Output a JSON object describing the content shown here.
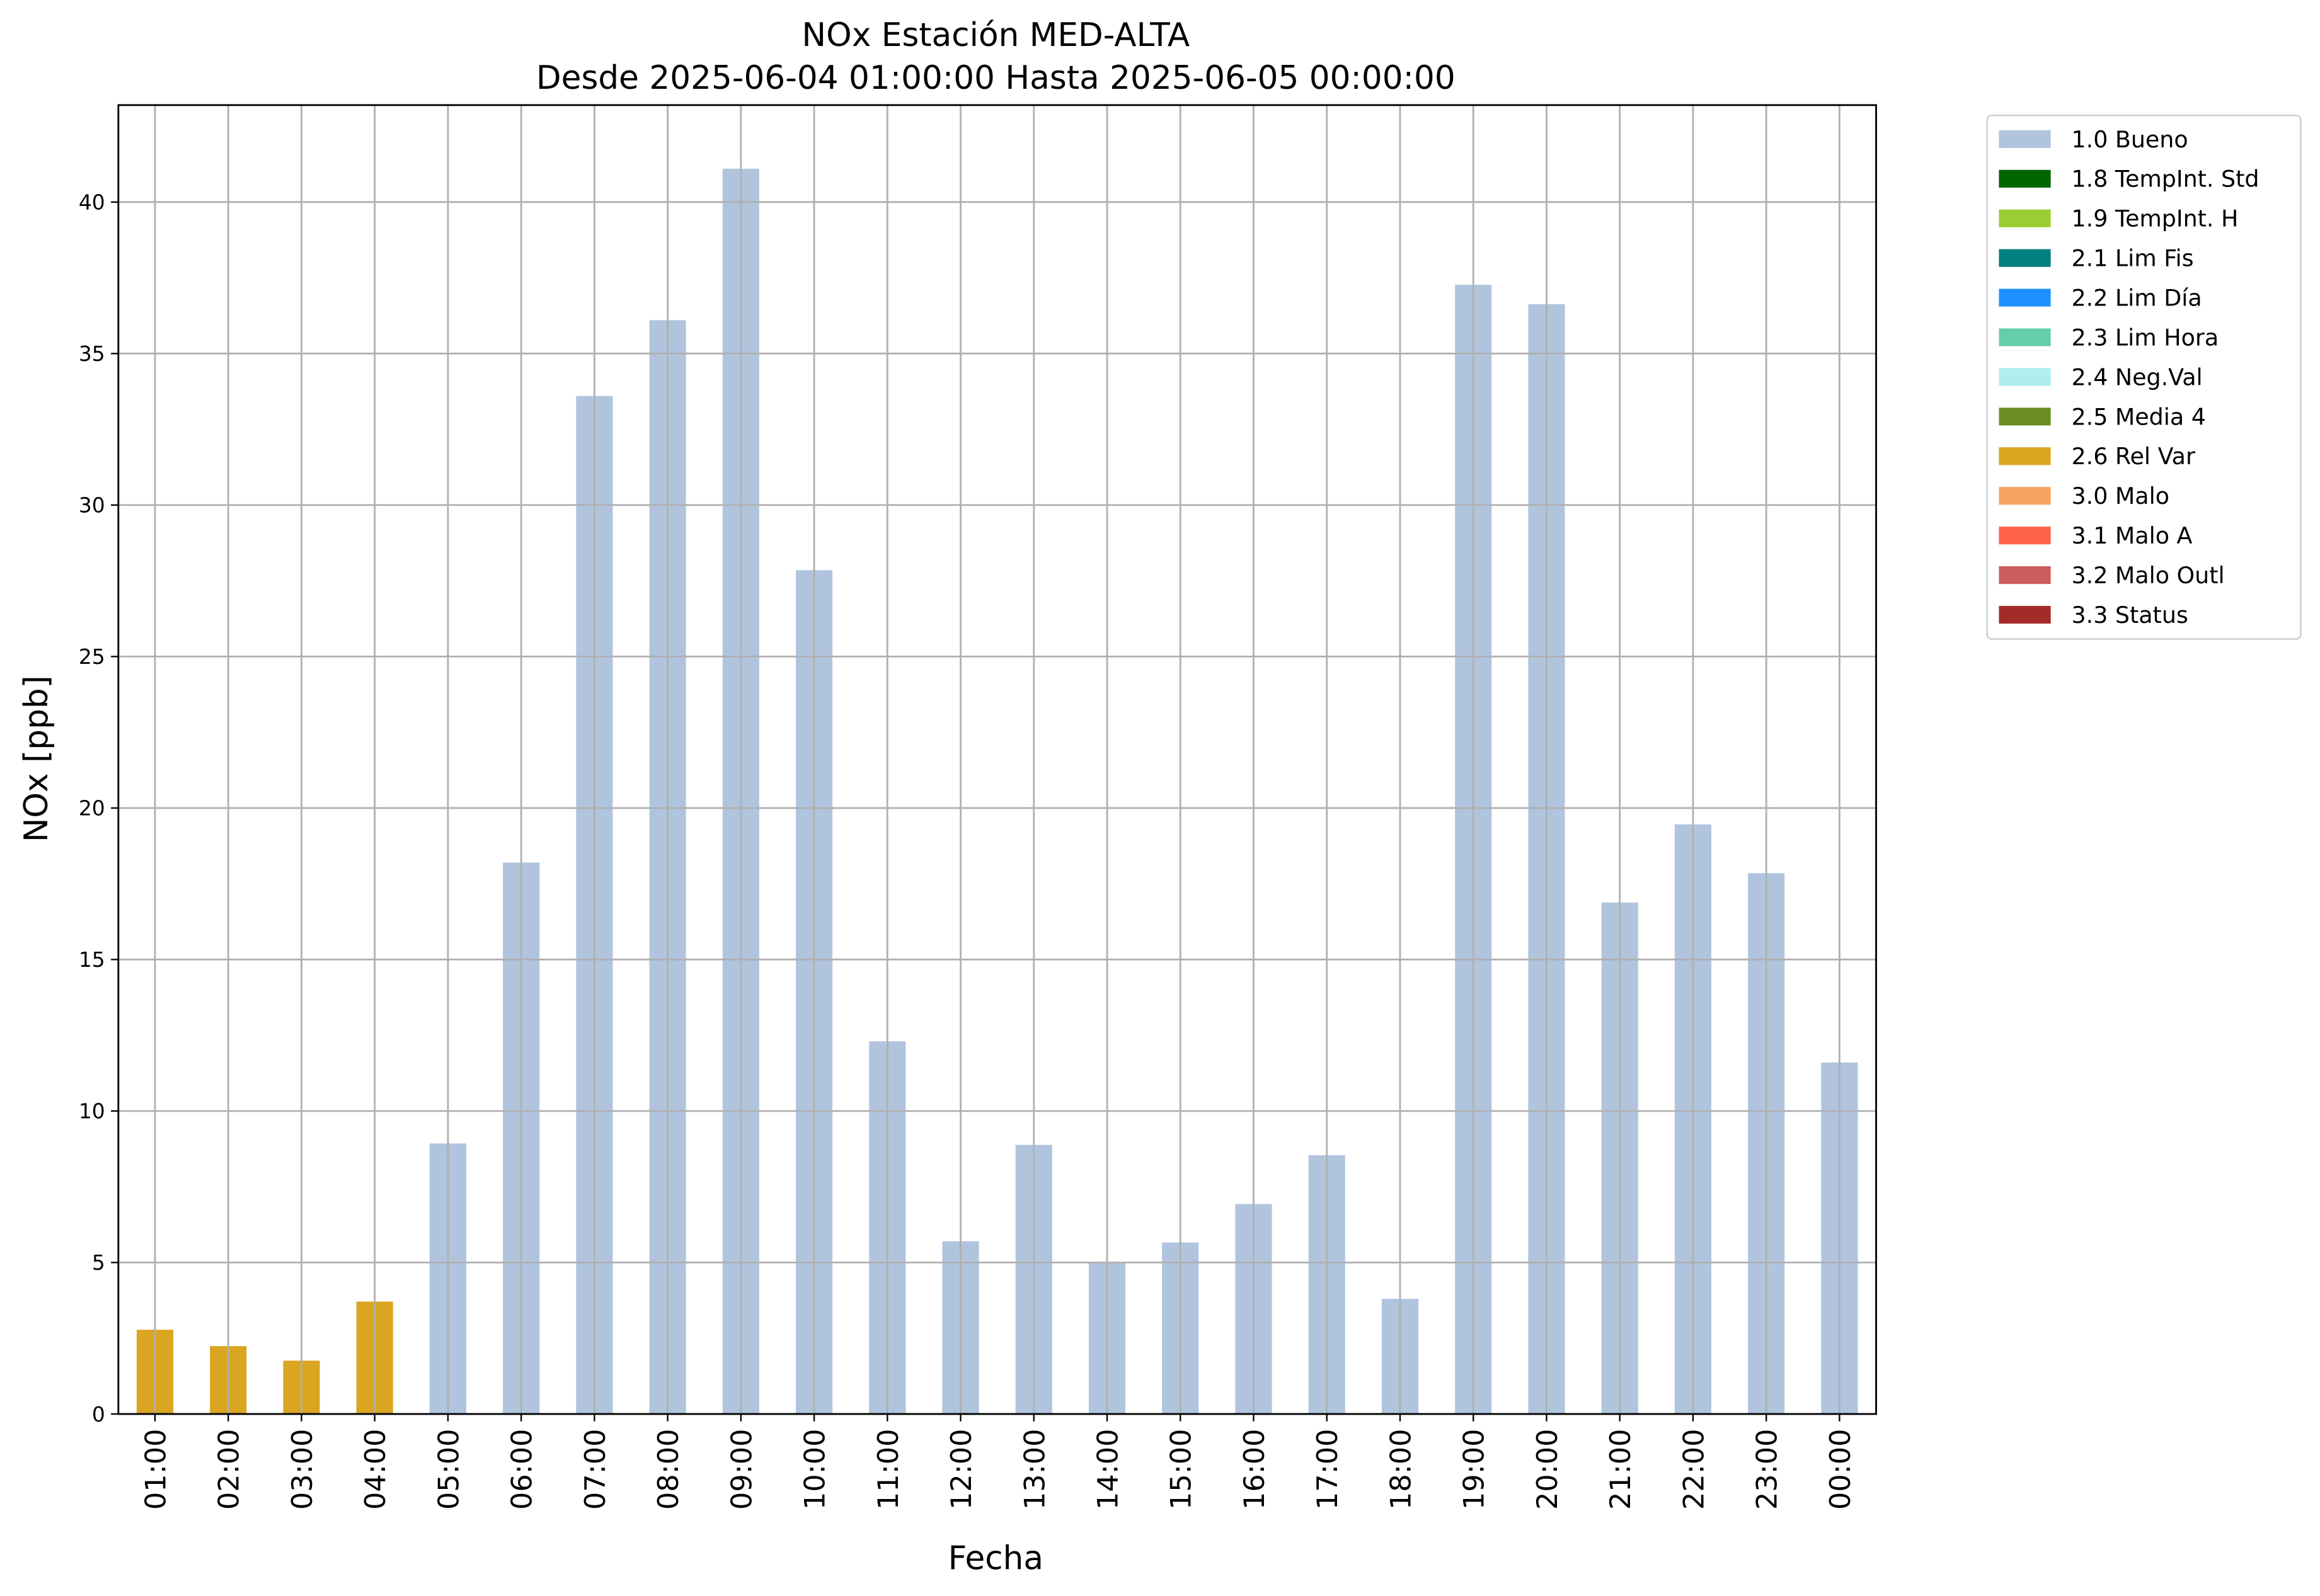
{
  "chart_data": {
    "type": "bar",
    "stacked": true,
    "title": "NOx Estación MED-ALTA",
    "subtitle": "Desde 2025-06-04 01:00:00 Hasta 2025-06-05 00:00:00",
    "x_label": "Fecha",
    "y_label": "NOx [ppb]",
    "categories": [
      "01:00",
      "02:00",
      "03:00",
      "04:00",
      "05:00",
      "06:00",
      "07:00",
      "08:00",
      "09:00",
      "10:00",
      "11:00",
      "12:00",
      "13:00",
      "14:00",
      "15:00",
      "16:00",
      "17:00",
      "18:00",
      "19:00",
      "20:00",
      "21:00",
      "22:00",
      "23:00",
      "00:00"
    ],
    "series": [
      {
        "name": "1.0 Bueno",
        "color": "#b0c4de",
        "values": [
          null,
          null,
          null,
          null,
          8.93,
          18.2,
          33.6,
          36.1,
          41.1,
          27.85,
          12.3,
          5.7,
          8.88,
          4.98,
          5.66,
          6.93,
          8.54,
          3.8,
          37.27,
          36.63,
          16.88,
          19.46,
          17.85,
          11.6
        ]
      },
      {
        "name": "1.8 TempInt. Std",
        "color": "#006400",
        "values": [
          null,
          null,
          null,
          null,
          null,
          null,
          null,
          null,
          null,
          null,
          null,
          null,
          null,
          null,
          null,
          null,
          null,
          null,
          null,
          null,
          null,
          null,
          null,
          null
        ]
      },
      {
        "name": "1.9 TempInt. H",
        "color": "#9acd32",
        "values": [
          null,
          null,
          null,
          null,
          null,
          null,
          null,
          null,
          null,
          null,
          null,
          null,
          null,
          null,
          null,
          null,
          null,
          null,
          null,
          null,
          null,
          null,
          null,
          null
        ]
      },
      {
        "name": "2.1 Lim Fis",
        "color": "#008080",
        "values": [
          null,
          null,
          null,
          null,
          null,
          null,
          null,
          null,
          null,
          null,
          null,
          null,
          null,
          null,
          null,
          null,
          null,
          null,
          null,
          null,
          null,
          null,
          null,
          null
        ]
      },
      {
        "name": "2.2 Lim Día",
        "color": "#1e90ff",
        "values": [
          null,
          null,
          null,
          null,
          null,
          null,
          null,
          null,
          null,
          null,
          null,
          null,
          null,
          null,
          null,
          null,
          null,
          null,
          null,
          null,
          null,
          null,
          null,
          null
        ]
      },
      {
        "name": "2.3 Lim Hora",
        "color": "#66cdaa",
        "values": [
          null,
          null,
          null,
          null,
          null,
          null,
          null,
          null,
          null,
          null,
          null,
          null,
          null,
          null,
          null,
          null,
          null,
          null,
          null,
          null,
          null,
          null,
          null,
          null
        ]
      },
      {
        "name": "2.4 Neg.Val",
        "color": "#afeeee",
        "values": [
          null,
          null,
          null,
          null,
          null,
          null,
          null,
          null,
          null,
          null,
          null,
          null,
          null,
          null,
          null,
          null,
          null,
          null,
          null,
          null,
          null,
          null,
          null,
          null
        ]
      },
      {
        "name": "2.5 Media 4",
        "color": "#6b8e23",
        "values": [
          null,
          null,
          null,
          null,
          null,
          null,
          null,
          null,
          null,
          null,
          null,
          null,
          null,
          null,
          null,
          null,
          null,
          null,
          null,
          null,
          null,
          null,
          null,
          null
        ]
      },
      {
        "name": "2.6 Rel Var",
        "color": "#daa520",
        "values": [
          2.78,
          2.24,
          1.76,
          3.71,
          null,
          null,
          null,
          null,
          null,
          null,
          null,
          null,
          null,
          null,
          null,
          null,
          null,
          null,
          null,
          null,
          null,
          null,
          null,
          null
        ]
      },
      {
        "name": "3.0 Malo",
        "color": "#f4a460",
        "values": [
          null,
          null,
          null,
          null,
          null,
          null,
          null,
          null,
          null,
          null,
          null,
          null,
          null,
          null,
          null,
          null,
          null,
          null,
          null,
          null,
          null,
          null,
          null,
          null
        ]
      },
      {
        "name": "3.1 Malo A",
        "color": "#ff6347",
        "values": [
          null,
          null,
          null,
          null,
          null,
          null,
          null,
          null,
          null,
          null,
          null,
          null,
          null,
          null,
          null,
          null,
          null,
          null,
          null,
          null,
          null,
          null,
          null,
          null
        ]
      },
      {
        "name": "3.2 Malo Outl",
        "color": "#cd5c5c",
        "values": [
          null,
          null,
          null,
          null,
          null,
          null,
          null,
          null,
          null,
          null,
          null,
          null,
          null,
          null,
          null,
          null,
          null,
          null,
          null,
          null,
          null,
          null,
          null,
          null
        ]
      },
      {
        "name": "3.3 Status",
        "color": "#a52a2a",
        "values": [
          null,
          null,
          null,
          null,
          null,
          null,
          null,
          null,
          null,
          null,
          null,
          null,
          null,
          null,
          null,
          null,
          null,
          null,
          null,
          null,
          null,
          null,
          null,
          null
        ]
      }
    ],
    "ylim": [
      0,
      43.2
    ],
    "yticks": [
      0,
      5,
      10,
      15,
      20,
      25,
      30,
      35,
      40
    ],
    "grid": true,
    "legend": "outside right"
  }
}
